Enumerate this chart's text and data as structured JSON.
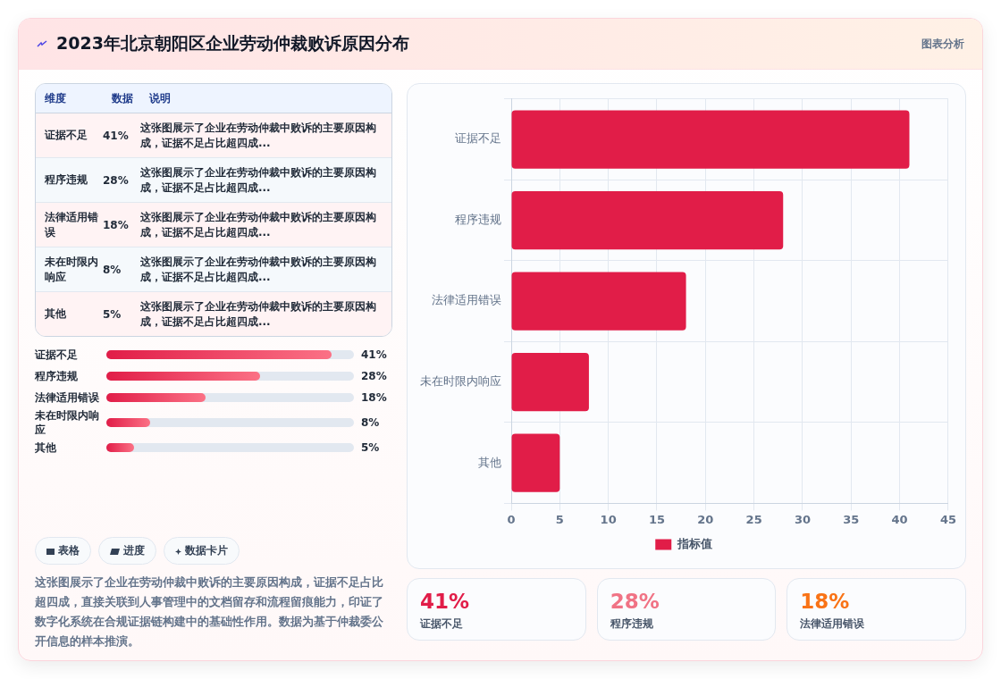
{
  "chart_data": {
    "type": "bar",
    "orientation": "horizontal",
    "title": "2023年北京朝阳区企业劳动仲裁败诉原因分布",
    "categories": [
      "证据不足",
      "程序违规",
      "法律适用错误",
      "未在时限内响应",
      "其他"
    ],
    "series": [
      {
        "name": "指标值",
        "color": "#e11d48",
        "values": [
          41,
          28,
          18,
          8,
          5
        ]
      }
    ],
    "xlim": [
      0,
      45
    ],
    "xticks": [
      0,
      5,
      10,
      15,
      20,
      25,
      30,
      35,
      40,
      45
    ],
    "grid": true,
    "legend": "bottom",
    "annotations": [
      "图表分析",
      "维度",
      "数据",
      "说明",
      "这张图展示了企业在劳动仲裁中败诉的主要原因构成，证据不足占比超四成...",
      "表格",
      "进度",
      "数据卡片",
      "这张图展示了企业在劳动仲裁中败诉的主要原因构成，证据不足占比超四成，直接关联到人事管理中的文档留存和流程留痕能力，印证了数字化系统在合规证据链构建中的基础性作用。数据为基于仲裁委公开信息的样本推演。",
      "41%",
      "28%",
      "18%",
      "8%",
      "5%"
    ]
  }
}
